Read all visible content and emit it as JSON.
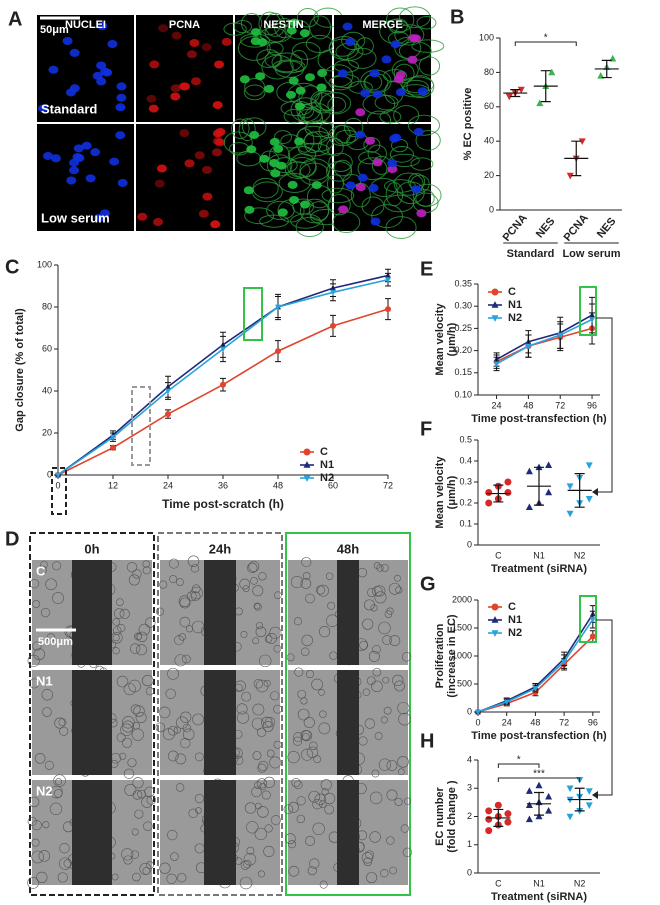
{
  "figure": {
    "panel_a": {
      "letter": "A",
      "columns": [
        "NUCLEI",
        "PCNA",
        "NESTIN",
        "MERGE"
      ],
      "rows": [
        "Standard",
        "Low serum"
      ],
      "scale": "50μm"
    },
    "panel_d": {
      "letter": "D",
      "columns": [
        "0h",
        "24h",
        "48h"
      ],
      "rows": [
        "C",
        "N1",
        "N2"
      ],
      "scale": "500μm"
    }
  },
  "chart_data": [
    {
      "type": "dot",
      "panel": "B",
      "ylabel": [
        "% EC positive"
      ],
      "categories": [
        "PCNA",
        "NES",
        "PCNA",
        "NES"
      ],
      "groups": [
        "Standard",
        "Low serum"
      ],
      "colors": [
        "#d62a2a",
        "#3bb54a",
        "#d62a2a",
        "#3bb54a"
      ],
      "points": [
        [
          66,
          68,
          70
        ],
        [
          62,
          72,
          80
        ],
        [
          20,
          30,
          40
        ],
        [
          78,
          83,
          88
        ]
      ],
      "means": [
        68,
        72,
        30,
        82
      ],
      "errors": [
        2,
        9,
        10,
        5
      ],
      "ylim": [
        0,
        100
      ],
      "yticks": [
        0,
        20,
        40,
        60,
        80,
        100
      ],
      "annotations": [
        "*"
      ]
    },
    {
      "type": "line",
      "panel": "C",
      "xlabel": "Time post-scratch (h)",
      "ylabel": [
        "Gap closure (% of total)"
      ],
      "x": [
        0,
        12,
        24,
        36,
        48,
        60,
        72
      ],
      "series": [
        {
          "name": "C",
          "color": "#e0442c",
          "values": [
            0,
            13,
            29,
            43,
            59,
            71,
            79
          ],
          "errors": [
            0,
            1,
            2,
            3,
            5,
            5,
            5
          ]
        },
        {
          "name": "N1",
          "color": "#1f2a7a",
          "values": [
            0,
            19,
            42,
            62,
            80,
            89,
            95
          ],
          "errors": [
            0,
            2,
            5,
            6,
            6,
            4,
            3
          ]
        },
        {
          "name": "N2",
          "color": "#2aa3dc",
          "values": [
            0,
            18,
            40,
            60,
            80,
            87,
            93
          ],
          "errors": [
            0,
            2,
            4,
            6,
            5,
            4,
            3
          ]
        }
      ],
      "xlim": [
        0,
        72
      ],
      "ylim": [
        0,
        100
      ],
      "xticks": [
        0,
        12,
        24,
        36,
        48,
        60,
        72
      ],
      "yticks": [
        0,
        20,
        40,
        60,
        80,
        100
      ]
    },
    {
      "type": "line",
      "panel": "E",
      "xlabel": "Time post-transfection (h)",
      "ylabel": [
        "Mean velocity",
        "(μm/h)"
      ],
      "x": [
        24,
        48,
        72,
        96
      ],
      "series": [
        {
          "name": "C",
          "color": "#e0442c",
          "values": [
            0.175,
            0.21,
            0.23,
            0.25
          ],
          "errors": [
            0.015,
            0.025,
            0.03,
            0.035
          ]
        },
        {
          "name": "N1",
          "color": "#1f2a7a",
          "values": [
            0.18,
            0.22,
            0.24,
            0.28
          ],
          "errors": [
            0.015,
            0.025,
            0.035,
            0.04
          ]
        },
        {
          "name": "N2",
          "color": "#2aa3dc",
          "values": [
            0.17,
            0.21,
            0.235,
            0.27
          ],
          "errors": [
            0.015,
            0.025,
            0.03,
            0.035
          ]
        }
      ],
      "xlim": [
        10,
        102
      ],
      "ylim": [
        0.1,
        0.35
      ],
      "xticks": [
        24,
        48,
        72,
        96
      ],
      "yticks": [
        {
          "value": 0.1,
          "label": "0.10"
        },
        {
          "value": 0.15,
          "label": "0.15"
        },
        {
          "value": 0.2,
          "label": "0.20"
        },
        {
          "value": 0.25,
          "label": "0.25"
        },
        {
          "value": 0.3,
          "label": "0.30"
        },
        {
          "value": 0.35,
          "label": "0.35"
        }
      ]
    },
    {
      "type": "dot",
      "panel": "F",
      "xlabel": "Treatment (siRNA)",
      "ylabel": [
        "Mean velocity",
        "(μm/h)"
      ],
      "categories": [
        "C",
        "N1",
        "N2"
      ],
      "colors": [
        "#d62a2a",
        "#1f2a7a",
        "#2aa3dc"
      ],
      "points": [
        [
          0.2,
          0.22,
          0.25,
          0.25,
          0.28,
          0.3
        ],
        [
          0.18,
          0.2,
          0.25,
          0.35,
          0.37,
          0.38
        ],
        [
          0.15,
          0.2,
          0.22,
          0.28,
          0.32,
          0.38
        ]
      ],
      "means": [
        0.245,
        0.28,
        0.26
      ],
      "errors": [
        0.04,
        0.09,
        0.08
      ],
      "ylim": [
        0,
        0.5
      ],
      "yticks": [
        0,
        0.1,
        0.2,
        0.3,
        0.4,
        0.5
      ]
    },
    {
      "type": "line",
      "panel": "G",
      "xlabel": "Time post-transfection (h)",
      "ylabel": [
        "Proliferation",
        "(increase in EC)"
      ],
      "x": [
        0,
        24,
        48,
        72,
        96
      ],
      "series": [
        {
          "name": "C",
          "color": "#e0442c",
          "values": [
            0,
            150,
            350,
            850,
            1350
          ],
          "errors": [
            0,
            40,
            60,
            100,
            100
          ]
        },
        {
          "name": "N1",
          "color": "#1f2a7a",
          "values": [
            0,
            200,
            450,
            950,
            1750
          ],
          "errors": [
            0,
            50,
            60,
            120,
            150
          ]
        },
        {
          "name": "N2",
          "color": "#2aa3dc",
          "values": [
            0,
            180,
            420,
            900,
            1650
          ],
          "errors": [
            0,
            50,
            60,
            120,
            150
          ]
        }
      ],
      "xlim": [
        0,
        102
      ],
      "ylim": [
        0,
        2000
      ],
      "xticks": [
        0,
        24,
        48,
        72,
        96
      ],
      "yticks": [
        0,
        500,
        1000,
        1500,
        2000
      ]
    },
    {
      "type": "dot",
      "panel": "H",
      "xlabel": "Treatment (siRNA)",
      "ylabel": [
        "EC number",
        "(fold change )"
      ],
      "categories": [
        "C",
        "N1",
        "N2"
      ],
      "colors": [
        "#d62a2a",
        "#1f2a7a",
        "#2aa3dc"
      ],
      "points": [
        [
          1.5,
          1.7,
          1.8,
          1.9,
          2.0,
          2.1,
          2.2,
          2.4
        ],
        [
          1.9,
          2.0,
          2.2,
          2.4,
          2.5,
          2.7,
          2.9,
          3.1
        ],
        [
          2.0,
          2.2,
          2.4,
          2.6,
          2.7,
          2.9,
          3.0,
          3.3
        ]
      ],
      "means": [
        1.95,
        2.45,
        2.6
      ],
      "errors": [
        0.3,
        0.4,
        0.4
      ],
      "ylim": [
        0,
        4
      ],
      "yticks": [
        0,
        1,
        2,
        3,
        4
      ],
      "annotations": [
        "*",
        "***"
      ]
    }
  ]
}
